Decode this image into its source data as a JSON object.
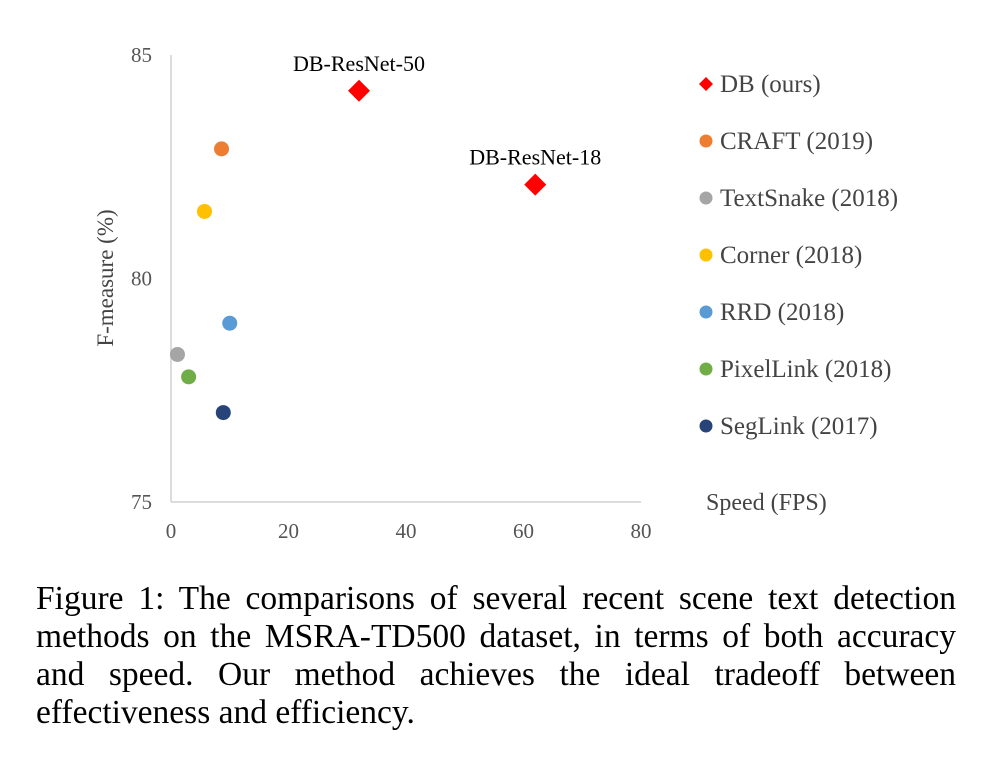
{
  "chart_data": {
    "type": "scatter",
    "xlabel": "Speed (FPS)",
    "ylabel": "F-measure (%)",
    "xlim": [
      0,
      80
    ],
    "ylim": [
      75,
      85
    ],
    "xticks": [
      "0",
      "20",
      "40",
      "60",
      "80"
    ],
    "yticks": [
      "85",
      "80",
      "75"
    ],
    "grid": false,
    "legend_position": "right",
    "series": [
      {
        "name": "DB (ours)",
        "color": "#ff0000",
        "marker": "diamond",
        "points": [
          {
            "x": 32,
            "y": 84.2,
            "label": "DB-ResNet-50"
          },
          {
            "x": 62,
            "y": 82.1,
            "label": "DB-ResNet-18"
          }
        ]
      },
      {
        "name": "CRAFT (2019)",
        "color": "#ed7d31",
        "marker": "circle",
        "points": [
          {
            "x": 8.6,
            "y": 82.9
          }
        ]
      },
      {
        "name": "TextSnake (2018)",
        "color": "#a5a5a5",
        "marker": "circle",
        "points": [
          {
            "x": 1.1,
            "y": 78.3
          }
        ]
      },
      {
        "name": "Corner (2018)",
        "color": "#ffc000",
        "marker": "circle",
        "points": [
          {
            "x": 5.7,
            "y": 81.5
          }
        ]
      },
      {
        "name": "RRD (2018)",
        "color": "#5b9bd5",
        "marker": "circle",
        "points": [
          {
            "x": 10,
            "y": 79.0
          }
        ]
      },
      {
        "name": "PixelLink (2018)",
        "color": "#70ad47",
        "marker": "circle",
        "points": [
          {
            "x": 3,
            "y": 77.8
          }
        ]
      },
      {
        "name": "SegLink (2017)",
        "color": "#264478",
        "marker": "circle",
        "points": [
          {
            "x": 8.9,
            "y": 77.0
          }
        ]
      }
    ]
  },
  "caption": "Figure 1: The comparisons of several recent scene text detection methods on the MSRA-TD500 dataset, in terms of both accuracy and speed. Our method achieves the ideal tradeoff between effectiveness and efficiency."
}
